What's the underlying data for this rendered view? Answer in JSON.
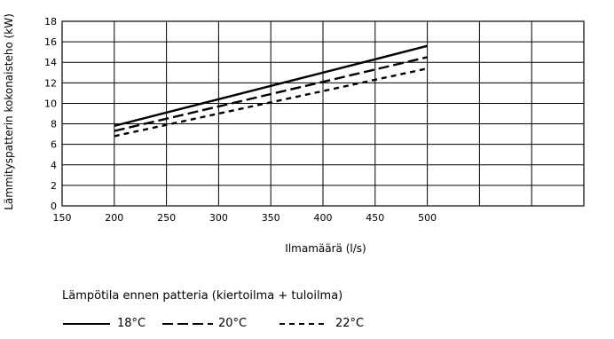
{
  "chart_data": {
    "type": "line",
    "title": "",
    "xlabel": "Ilmamäärä (l/s)",
    "ylabel": "Lämmityspatterin kokonaisteho (kW)",
    "xlim": [
      150,
      650
    ],
    "ylim": [
      0,
      18
    ],
    "xticks": [
      150,
      200,
      250,
      300,
      350,
      400,
      450,
      500
    ],
    "yticks": [
      0,
      2,
      4,
      6,
      8,
      10,
      12,
      14,
      16,
      18
    ],
    "grid": true,
    "legend_title": "Lämpötila ennen patteria (kiertoilma + tuloilma)",
    "legend_position": "bottom",
    "series": [
      {
        "name": "18°C",
        "style": "solid",
        "x": [
          200,
          250,
          300,
          350,
          400,
          450,
          500
        ],
        "y": [
          7.8,
          9.1,
          10.4,
          11.7,
          13.0,
          14.3,
          15.6
        ]
      },
      {
        "name": "20°C",
        "style": "dashed",
        "x": [
          200,
          250,
          300,
          350,
          400,
          450,
          500
        ],
        "y": [
          7.3,
          8.5,
          9.7,
          10.9,
          12.1,
          13.3,
          14.5
        ]
      },
      {
        "name": "22°C",
        "style": "dotted",
        "x": [
          200,
          250,
          300,
          350,
          400,
          450,
          500
        ],
        "y": [
          6.8,
          7.9,
          9.0,
          10.1,
          11.2,
          12.3,
          13.4
        ]
      }
    ]
  }
}
